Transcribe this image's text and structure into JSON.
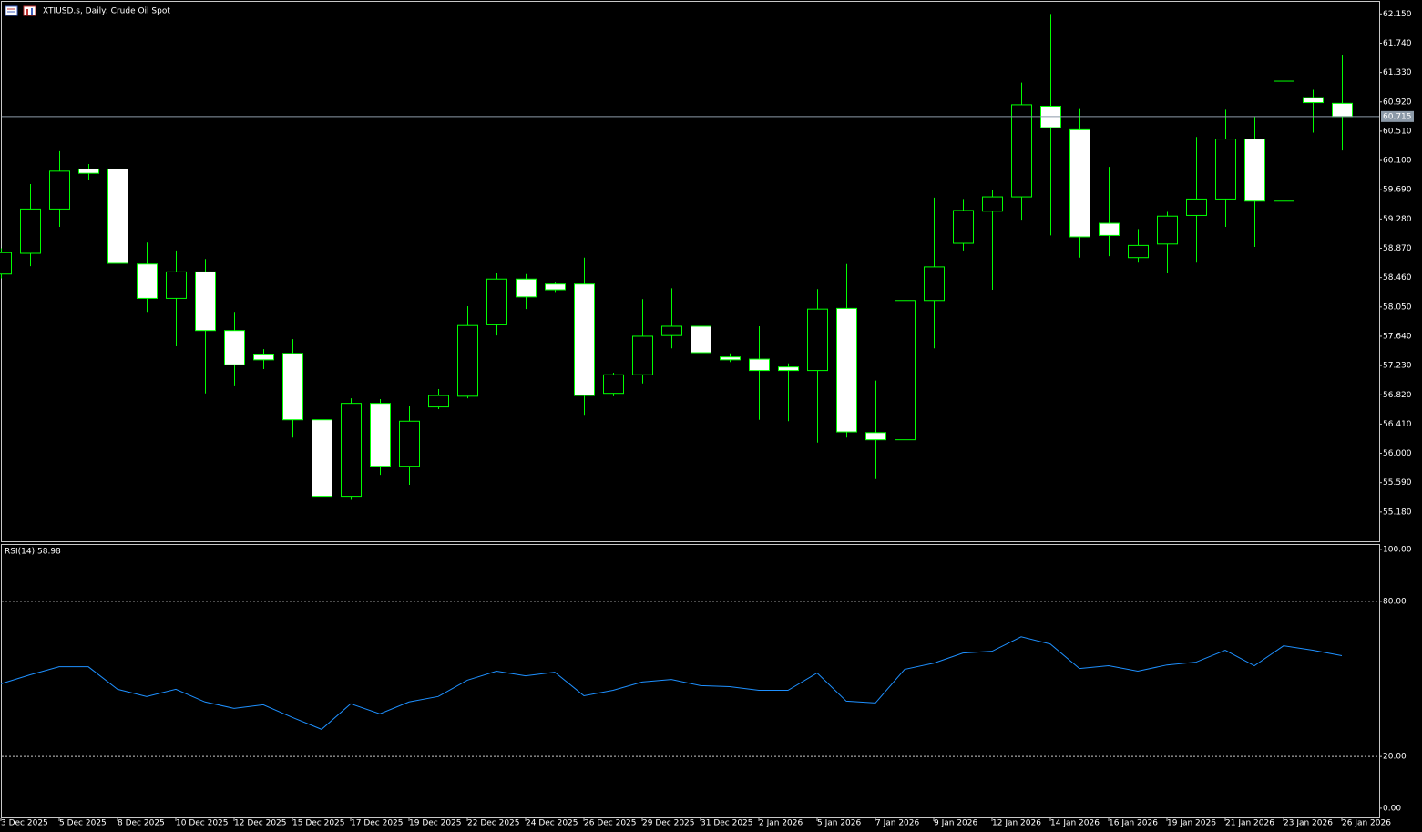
{
  "chart_data": [
    {
      "type": "candlestick",
      "title": "XTIUSD.s, Daily:  Crude Oil Spot",
      "categories": [
        "3 Dec 2025",
        null,
        "5 Dec 2025",
        null,
        "8 Dec 2025",
        null,
        "10 Dec 2025",
        null,
        "12 Dec 2025",
        null,
        "15 Dec 2025",
        null,
        "17 Dec 2025",
        null,
        "19 Dec 2025",
        null,
        "22 Dec 2025",
        null,
        "24 Dec 2025",
        null,
        "26 Dec 2025",
        null,
        "29 Dec 2025",
        null,
        "31 Dec 2025",
        null,
        "2 Jan 2026",
        null,
        "5 Jan 2026",
        null,
        "7 Jan 2026",
        null,
        "9 Jan 2026",
        null,
        "12 Jan 2026",
        null,
        "14 Jan 2026",
        null,
        "16 Jan 2026",
        null,
        "19 Jan 2026",
        null,
        "21 Jan 2026",
        null,
        "23 Jan 2026",
        null,
        "26 Jan 2026"
      ],
      "open": [
        58.51,
        58.8,
        59.42,
        59.98,
        59.98,
        58.65,
        58.17,
        58.54,
        57.72,
        57.38,
        57.4,
        56.47,
        55.4,
        56.7,
        55.82,
        56.65,
        56.8,
        57.8,
        58.44,
        58.37,
        58.37,
        56.84,
        57.1,
        57.65,
        57.78,
        57.35,
        57.32,
        57.21,
        57.16,
        58.03,
        56.29,
        56.19,
        58.14,
        58.94,
        59.39,
        59.59,
        60.86,
        60.53,
        59.22,
        58.74,
        58.93,
        59.33,
        59.56,
        60.4,
        59.53,
        60.98,
        60.9
      ],
      "high": [
        58.87,
        59.77,
        60.23,
        60.05,
        60.06,
        58.95,
        58.84,
        58.72,
        57.98,
        57.46,
        57.6,
        56.51,
        56.77,
        56.76,
        56.66,
        56.9,
        58.06,
        58.52,
        58.51,
        58.39,
        58.74,
        57.13,
        58.16,
        58.31,
        58.39,
        57.4,
        57.78,
        57.26,
        58.3,
        58.65,
        57.02,
        58.59,
        59.58,
        59.56,
        59.68,
        61.19,
        62.15,
        60.82,
        60.01,
        59.14,
        59.38,
        60.43,
        60.81,
        60.71,
        61.25,
        61.09,
        61.58
      ],
      "low": [
        58.45,
        58.62,
        59.17,
        59.83,
        58.48,
        57.98,
        57.5,
        56.84,
        56.94,
        57.18,
        56.22,
        54.85,
        55.35,
        55.7,
        55.56,
        56.62,
        56.77,
        57.65,
        58.02,
        58.26,
        56.54,
        56.8,
        56.98,
        57.47,
        57.32,
        57.28,
        56.47,
        56.45,
        56.15,
        56.22,
        55.64,
        55.87,
        57.47,
        58.84,
        58.29,
        59.27,
        59.05,
        58.74,
        58.76,
        58.67,
        58.52,
        58.67,
        59.17,
        58.89,
        59.51,
        60.49,
        60.24
      ],
      "close": [
        58.81,
        59.42,
        59.95,
        59.92,
        58.66,
        58.17,
        58.54,
        57.72,
        57.24,
        57.31,
        56.47,
        55.4,
        56.7,
        55.82,
        56.45,
        56.81,
        57.79,
        58.44,
        58.19,
        58.29,
        56.81,
        57.1,
        57.64,
        57.78,
        57.41,
        57.31,
        57.16,
        57.16,
        58.02,
        56.3,
        56.19,
        58.14,
        58.61,
        59.4,
        59.59,
        60.88,
        60.56,
        59.03,
        59.05,
        58.91,
        59.32,
        59.56,
        60.4,
        59.53,
        61.21,
        60.91,
        60.715
      ],
      "up_color": "#00ff00",
      "up_fill": "#000000",
      "down_color": "#00ff00",
      "down_fill": "#ffffff",
      "price_line_color": "#8c9aa8",
      "ylim": [
        54.77,
        62.32
      ],
      "yticks": [
        {
          "value": 62.15,
          "label": "62.150"
        },
        {
          "value": 61.74,
          "label": "61.740"
        },
        {
          "value": 61.33,
          "label": "61.330"
        },
        {
          "value": 60.92,
          "label": "60.920"
        },
        {
          "value": 60.51,
          "label": "60.510"
        },
        {
          "value": 60.1,
          "label": "60.100"
        },
        {
          "value": 59.69,
          "label": "59.690"
        },
        {
          "value": 59.28,
          "label": "59.280"
        },
        {
          "value": 58.87,
          "label": "58.870"
        },
        {
          "value": 58.46,
          "label": "58.460"
        },
        {
          "value": 58.05,
          "label": "58.050"
        },
        {
          "value": 57.64,
          "label": "57.640"
        },
        {
          "value": 57.23,
          "label": "57.230"
        },
        {
          "value": 56.82,
          "label": "56.820"
        },
        {
          "value": 56.41,
          "label": "56.410"
        },
        {
          "value": 56.0,
          "label": "56.000"
        },
        {
          "value": 55.59,
          "label": "55.590"
        },
        {
          "value": 55.18,
          "label": "55.180"
        }
      ],
      "grid": false
    },
    {
      "type": "line",
      "title": "RSI(14)",
      "values": [
        48.1,
        51.6,
        54.7,
        54.7,
        46.0,
        43.2,
        46.0,
        41.1,
        38.6,
        40.0,
        35.1,
        30.5,
        40.4,
        36.5,
        41.1,
        43.2,
        49.5,
        53.0,
        51.2,
        52.6,
        43.5,
        45.6,
        48.8,
        49.8,
        47.4,
        47.0,
        45.6,
        45.6,
        52.3,
        41.4,
        40.7,
        53.7,
        56.1,
        60.0,
        60.7,
        66.3,
        63.5,
        54.0,
        55.1,
        53.0,
        55.4,
        56.5,
        61.1,
        55.1,
        62.8,
        61.1,
        58.98
      ],
      "color": "#1e90ff",
      "ylim": [
        -3.9,
        101.8
      ],
      "yticks": [
        {
          "value": 100,
          "label": "100.00"
        },
        {
          "value": 80,
          "label": "80.00"
        },
        {
          "value": 20,
          "label": "20.00"
        },
        {
          "value": 0,
          "label": "0.00"
        }
      ],
      "grid": false
    }
  ]
}
